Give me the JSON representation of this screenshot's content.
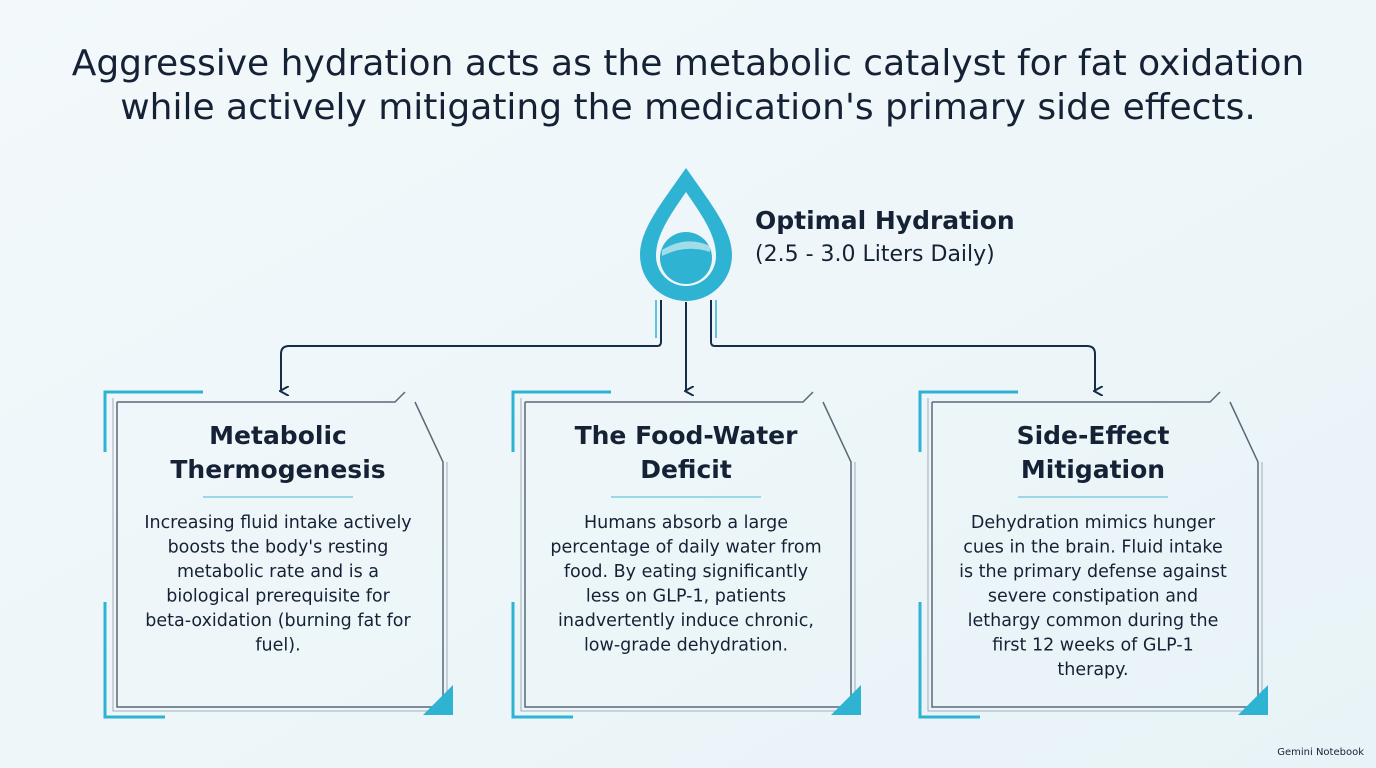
{
  "header": {
    "title": [
      "Aggressive hydration acts as the metabolic catalyst for fat oxidation",
      "while actively mitigating the medication's primary side effects."
    ]
  },
  "hub": {
    "label": "Optimal Hydration",
    "sublabel": "(2.5 - 3.0 Liters Daily)"
  },
  "cards": [
    {
      "title": [
        "Metabolic",
        "Thermogenesis"
      ],
      "body": [
        "Increasing fluid intake actively",
        "boosts the body's resting",
        "metabolic rate and is a",
        "biological prerequisite for",
        "beta-oxidation (burning fat for",
        "fuel)."
      ]
    },
    {
      "title": [
        "The Food-Water",
        "Deficit"
      ],
      "body": [
        "Humans absorb a large",
        "percentage of daily water from",
        "food. By eating significantly",
        "less on GLP-1, patients",
        "inadvertently induce chronic,",
        "low-grade dehydration."
      ]
    },
    {
      "title": [
        "Side-Effect",
        "Mitigation"
      ],
      "body": [
        "Dehydration mimics hunger",
        "cues in the brain. Fluid intake",
        "is the primary defense against",
        "severe constipation and",
        "lethargy common during the",
        "first 12 weeks of GLP-1",
        "therapy."
      ]
    }
  ],
  "watermark": "Gemini Notebook"
}
